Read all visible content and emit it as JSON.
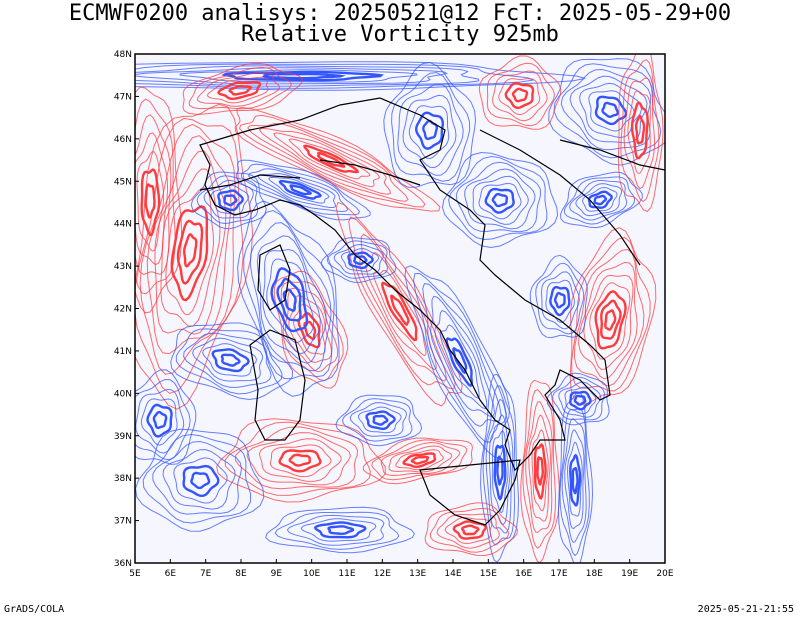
{
  "title_line1": "ECMWF0200 analisys: 20250521@12 FcT: 2025-05-29+00",
  "title_line2": "Relative Vorticity 925mb",
  "footer_left": "GrADS/COLA",
  "footer_right": "2025-05-21-21:55",
  "colors": {
    "positive": "#ff3b3b",
    "negative": "#3355ff",
    "frame": "#000000",
    "coast": "#000000"
  },
  "map": {
    "lon_range": [
      5,
      20
    ],
    "lat_range": [
      36,
      48
    ],
    "lon_labels": [
      "5E",
      "6E",
      "7E",
      "8E",
      "9E",
      "10E",
      "11E",
      "12E",
      "13E",
      "14E",
      "15E",
      "16E",
      "17E",
      "18E",
      "19E",
      "20E"
    ],
    "lat_labels": [
      "36N",
      "37N",
      "38N",
      "39N",
      "40N",
      "41N",
      "42N",
      "43N",
      "44N",
      "45N",
      "46N",
      "47N",
      "48N"
    ]
  }
}
